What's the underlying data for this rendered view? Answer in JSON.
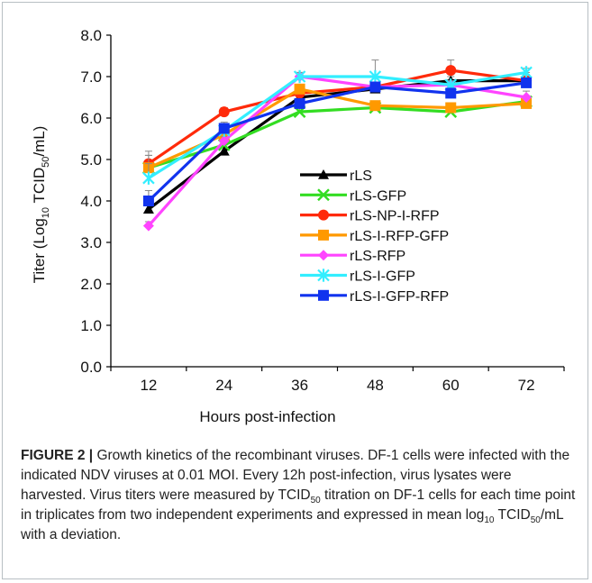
{
  "chart_data": {
    "type": "line",
    "xlabel": "Hours post-infection",
    "ylabel_main": "Titer (Log",
    "ylabel_sub1": "10",
    "ylabel_mid": " TCID",
    "ylabel_sub2": "50",
    "ylabel_end": "/mL)",
    "x": [
      12,
      24,
      36,
      48,
      60,
      72
    ],
    "x_ticks": [
      "12",
      "24",
      "36",
      "48",
      "60",
      "72"
    ],
    "ylim": [
      0,
      8
    ],
    "y_ticks": [
      "0.0",
      "1.0",
      "2.0",
      "3.0",
      "4.0",
      "5.0",
      "6.0",
      "7.0",
      "8.0"
    ],
    "grid": false,
    "legend_position": "center-right",
    "series": [
      {
        "name": "rLS",
        "color": "#000000",
        "marker": "triangle",
        "values": [
          3.8,
          5.2,
          6.5,
          6.7,
          6.9,
          6.9
        ],
        "errors": [
          0.45,
          0.15,
          0.1,
          0.1,
          0.1,
          0.2
        ]
      },
      {
        "name": "rLS-GFP",
        "color": "#33dd22",
        "marker": "x",
        "values": [
          4.8,
          5.35,
          6.15,
          6.25,
          6.15,
          6.4
        ],
        "errors": [
          0.3,
          0.1,
          0.1,
          0.1,
          0.1,
          0.1
        ]
      },
      {
        "name": "rLS-NP-I-RFP",
        "color": "#ff2a0a",
        "marker": "circle",
        "values": [
          4.9,
          6.15,
          6.6,
          6.75,
          7.15,
          6.9
        ],
        "errors": [
          0.3,
          0.1,
          0.1,
          0.1,
          0.25,
          0.15
        ]
      },
      {
        "name": "rLS-I-RFP-GFP",
        "color": "#ff9900",
        "marker": "square",
        "values": [
          4.8,
          5.6,
          6.7,
          6.3,
          6.25,
          6.35
        ],
        "errors": [
          0.3,
          0.1,
          0.1,
          0.1,
          0.1,
          0.1
        ]
      },
      {
        "name": "rLS-RFP",
        "color": "#ff44ff",
        "marker": "diamond",
        "values": [
          3.4,
          5.45,
          7.0,
          6.75,
          6.8,
          6.5
        ],
        "errors": [
          0.1,
          0.1,
          0.1,
          0.1,
          0.1,
          0.15
        ]
      },
      {
        "name": "rLS-I-GFP",
        "color": "#33eeff",
        "marker": "star",
        "values": [
          4.55,
          5.7,
          7.0,
          7.0,
          6.8,
          7.1
        ],
        "errors": [
          0.35,
          0.1,
          0.1,
          0.4,
          0.1,
          0.1
        ]
      },
      {
        "name": "rLS-I-GFP-RFP",
        "color": "#1133ee",
        "marker": "square",
        "values": [
          4.0,
          5.75,
          6.35,
          6.75,
          6.6,
          6.85
        ],
        "errors": [
          0.25,
          0.15,
          0.1,
          0.1,
          0.1,
          0.1
        ]
      }
    ]
  },
  "caption": {
    "label": "FIGURE 2 |",
    "text_1": " Growth kinetics of the recombinant viruses. DF-1 cells were infected with the indicated NDV viruses at 0.01 MOI. Every 12h post-infection, virus lysates were harvested. Virus titers were measured by TCID",
    "sub_1": "50",
    "text_2": " titration on DF-1 cells for each time point in triplicates from two independent experiments and expressed in mean log",
    "sub_2": "10",
    "text_3": " TCID",
    "sub_3": "50",
    "text_4": "/mL with a deviation."
  }
}
